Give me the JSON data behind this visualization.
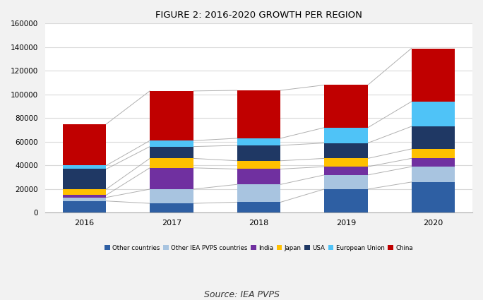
{
  "title": "FIGURE 2: 2016-2020 GROWTH PER REGION",
  "source": "Source: IEA PVPS",
  "years": [
    "2016",
    "2017",
    "2018",
    "2019",
    "2020"
  ],
  "categories": [
    "Other countries",
    "Other IEA PVPS countries",
    "India",
    "Japan",
    "USA",
    "European Union",
    "China"
  ],
  "colors": [
    "#2e5fa3",
    "#a8c4e0",
    "#7030a0",
    "#ffc000",
    "#1f3864",
    "#4fc3f7",
    "#c00000"
  ],
  "data": {
    "Other countries": [
      10000,
      8000,
      9000,
      20000,
      26000
    ],
    "Other IEA PVPS countries": [
      3000,
      12000,
      15000,
      12000,
      13000
    ],
    "India": [
      2000,
      18000,
      13000,
      7000,
      7000
    ],
    "Japan": [
      5000,
      8000,
      7000,
      7000,
      8000
    ],
    "USA": [
      17000,
      10000,
      13000,
      13000,
      19000
    ],
    "European Union": [
      3000,
      5000,
      6000,
      13000,
      21000
    ],
    "China": [
      35000,
      42000,
      40500,
      36000,
      45000
    ]
  },
  "ylim": [
    0,
    160000
  ],
  "yticks": [
    0,
    20000,
    40000,
    60000,
    80000,
    100000,
    120000,
    140000,
    160000
  ],
  "bg_color": "#f2f2f2",
  "plot_bg_color": "#ffffff",
  "gridcolor": "#d9d9d9",
  "title_fontsize": 9.5,
  "source_fontsize": 9,
  "bar_width": 0.5
}
